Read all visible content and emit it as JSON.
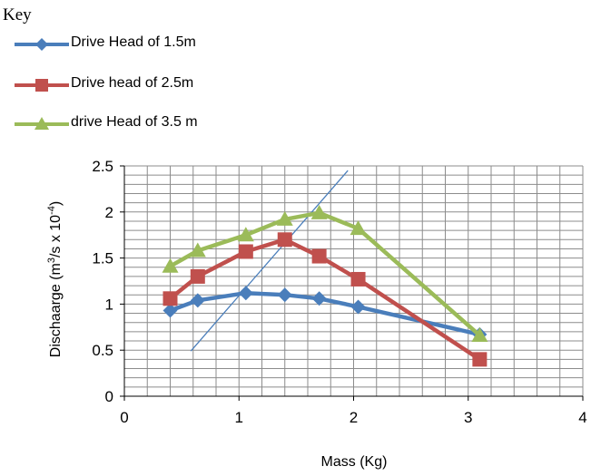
{
  "key_title": "Key",
  "chart_data": {
    "type": "line",
    "xlabel": "Mass (Kg)",
    "ylabel_parts": [
      "Dischaarge (m",
      "3",
      "/s x 10",
      "-4",
      ")"
    ],
    "xlim": [
      0,
      4
    ],
    "ylim": [
      0,
      2.5
    ],
    "x_ticks": [
      "0",
      "1",
      "2",
      "3",
      "4"
    ],
    "y_ticks": [
      "0",
      "0.5",
      "1",
      "1.5",
      "2",
      "2.5"
    ],
    "grid": true,
    "legend_position": "top-left",
    "series": [
      {
        "name": "Drive Head of 1.5m",
        "color": "#4a7ebb",
        "marker": "diamond",
        "x": [
          0.4,
          0.64,
          1.06,
          1.4,
          1.7,
          2.04,
          3.1
        ],
        "y": [
          0.93,
          1.04,
          1.12,
          1.1,
          1.06,
          0.97,
          0.67
        ]
      },
      {
        "name": "Drive head of 2.5m",
        "color": "#c0504d",
        "marker": "square",
        "x": [
          0.4,
          0.64,
          1.06,
          1.4,
          1.7,
          2.04,
          3.1
        ],
        "y": [
          1.06,
          1.3,
          1.57,
          1.7,
          1.52,
          1.27,
          0.4
        ]
      },
      {
        "name": "drive Head of 3.5 m",
        "color": "#9bbb59",
        "marker": "triangle",
        "x": [
          0.4,
          0.64,
          1.06,
          1.4,
          1.7,
          2.04,
          3.1
        ],
        "y": [
          1.41,
          1.58,
          1.75,
          1.92,
          1.99,
          1.82,
          0.66
        ]
      }
    ],
    "annotation_line": {
      "color": "#4a7ebb",
      "x": [
        0.58,
        1.95
      ],
      "y": [
        0.49,
        2.45
      ]
    }
  }
}
